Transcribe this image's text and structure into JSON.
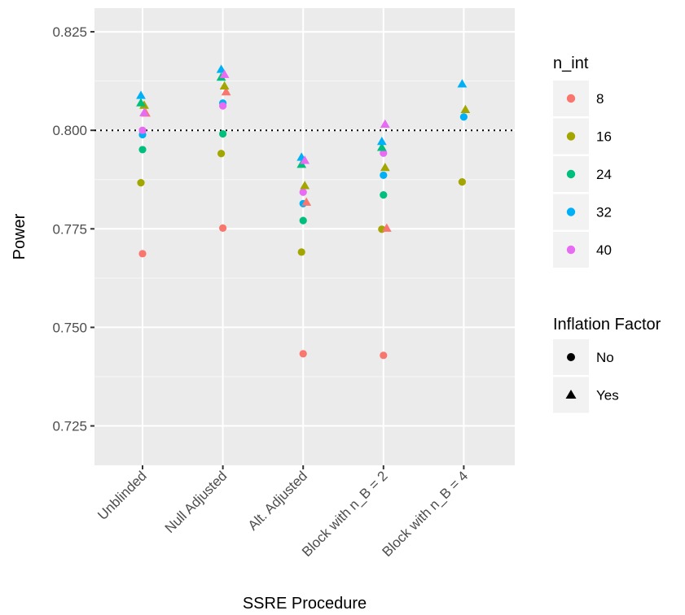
{
  "chart_data": {
    "type": "scatter",
    "xlabel": "SSRE Procedure",
    "ylabel": "Power",
    "categories": [
      "Unblinded",
      "Null Adjusted",
      "Alt. Adjusted",
      "Block with n_B = 2",
      "Block with n_B = 4"
    ],
    "ylim": [
      0.715,
      0.831
    ],
    "y_ticks": [
      0.725,
      0.75,
      0.775,
      0.8,
      0.825
    ],
    "y_tick_labels": [
      "0.725",
      "0.750",
      "0.775",
      "0.800",
      "0.825"
    ],
    "reference_line": {
      "y": 0.8,
      "style": "dotted"
    },
    "grid": true,
    "legend_position": "right",
    "color_legend": {
      "title": "n_int",
      "entries": [
        {
          "label": "8",
          "color": "#F8766D"
        },
        {
          "label": "16",
          "color": "#A3A500"
        },
        {
          "label": "24",
          "color": "#00BF7D"
        },
        {
          "label": "32",
          "color": "#00B0F6"
        },
        {
          "label": "40",
          "color": "#E76BF3"
        }
      ]
    },
    "shape_legend": {
      "title": "Inflation Factor",
      "entries": [
        {
          "label": "No",
          "shape": "circle"
        },
        {
          "label": "Yes",
          "shape": "triangle"
        }
      ]
    },
    "points": [
      {
        "category": "Unblinded",
        "n_int": "8",
        "inflation": "No",
        "y": 0.7687
      },
      {
        "category": "Unblinded",
        "n_int": "8",
        "inflation": "Yes",
        "y": 0.8043
      },
      {
        "category": "Unblinded",
        "n_int": "16",
        "inflation": "No",
        "y": 0.7867
      },
      {
        "category": "Unblinded",
        "n_int": "16",
        "inflation": "Yes",
        "y": 0.8063
      },
      {
        "category": "Unblinded",
        "n_int": "24",
        "inflation": "No",
        "y": 0.7951
      },
      {
        "category": "Unblinded",
        "n_int": "24",
        "inflation": "Yes",
        "y": 0.8069
      },
      {
        "category": "Unblinded",
        "n_int": "32",
        "inflation": "No",
        "y": 0.7989
      },
      {
        "category": "Unblinded",
        "n_int": "32",
        "inflation": "Yes",
        "y": 0.8088
      },
      {
        "category": "Unblinded",
        "n_int": "40",
        "inflation": "No",
        "y": 0.8
      },
      {
        "category": "Unblinded",
        "n_int": "40",
        "inflation": "Yes",
        "y": 0.8044
      },
      {
        "category": "Null Adjusted",
        "n_int": "8",
        "inflation": "No",
        "y": 0.7752
      },
      {
        "category": "Null Adjusted",
        "n_int": "8",
        "inflation": "Yes",
        "y": 0.8097
      },
      {
        "category": "Null Adjusted",
        "n_int": "16",
        "inflation": "No",
        "y": 0.7941
      },
      {
        "category": "Null Adjusted",
        "n_int": "16",
        "inflation": "Yes",
        "y": 0.8112
      },
      {
        "category": "Null Adjusted",
        "n_int": "24",
        "inflation": "No",
        "y": 0.7991
      },
      {
        "category": "Null Adjusted",
        "n_int": "24",
        "inflation": "Yes",
        "y": 0.8134
      },
      {
        "category": "Null Adjusted",
        "n_int": "32",
        "inflation": "No",
        "y": 0.8069
      },
      {
        "category": "Null Adjusted",
        "n_int": "32",
        "inflation": "Yes",
        "y": 0.8154
      },
      {
        "category": "Null Adjusted",
        "n_int": "40",
        "inflation": "No",
        "y": 0.8062
      },
      {
        "category": "Null Adjusted",
        "n_int": "40",
        "inflation": "Yes",
        "y": 0.8141
      },
      {
        "category": "Alt. Adjusted",
        "n_int": "8",
        "inflation": "No",
        "y": 0.7433
      },
      {
        "category": "Alt. Adjusted",
        "n_int": "8",
        "inflation": "Yes",
        "y": 0.7817
      },
      {
        "category": "Alt. Adjusted",
        "n_int": "16",
        "inflation": "No",
        "y": 0.7691
      },
      {
        "category": "Alt. Adjusted",
        "n_int": "16",
        "inflation": "Yes",
        "y": 0.7859
      },
      {
        "category": "Alt. Adjusted",
        "n_int": "24",
        "inflation": "No",
        "y": 0.7771
      },
      {
        "category": "Alt. Adjusted",
        "n_int": "24",
        "inflation": "Yes",
        "y": 0.7913
      },
      {
        "category": "Alt. Adjusted",
        "n_int": "32",
        "inflation": "No",
        "y": 0.7814
      },
      {
        "category": "Alt. Adjusted",
        "n_int": "32",
        "inflation": "Yes",
        "y": 0.7931
      },
      {
        "category": "Alt. Adjusted",
        "n_int": "40",
        "inflation": "No",
        "y": 0.7843
      },
      {
        "category": "Alt. Adjusted",
        "n_int": "40",
        "inflation": "Yes",
        "y": 0.7923
      },
      {
        "category": "Block with n_B = 2",
        "n_int": "8",
        "inflation": "No",
        "y": 0.7429
      },
      {
        "category": "Block with n_B = 2",
        "n_int": "8",
        "inflation": "Yes",
        "y": 0.7751
      },
      {
        "category": "Block with n_B = 2",
        "n_int": "16",
        "inflation": "No",
        "y": 0.7749
      },
      {
        "category": "Block with n_B = 2",
        "n_int": "16",
        "inflation": "Yes",
        "y": 0.7905
      },
      {
        "category": "Block with n_B = 2",
        "n_int": "24",
        "inflation": "No",
        "y": 0.7836
      },
      {
        "category": "Block with n_B = 2",
        "n_int": "24",
        "inflation": "Yes",
        "y": 0.7956
      },
      {
        "category": "Block with n_B = 2",
        "n_int": "32",
        "inflation": "No",
        "y": 0.7886
      },
      {
        "category": "Block with n_B = 2",
        "n_int": "32",
        "inflation": "Yes",
        "y": 0.7971
      },
      {
        "category": "Block with n_B = 2",
        "n_int": "40",
        "inflation": "No",
        "y": 0.7942
      },
      {
        "category": "Block with n_B = 2",
        "n_int": "40",
        "inflation": "Yes",
        "y": 0.8015
      },
      {
        "category": "Block with n_B = 4",
        "n_int": "16",
        "inflation": "No",
        "y": 0.7869
      },
      {
        "category": "Block with n_B = 4",
        "n_int": "16",
        "inflation": "Yes",
        "y": 0.8052
      },
      {
        "category": "Block with n_B = 4",
        "n_int": "32",
        "inflation": "No",
        "y": 0.8034
      },
      {
        "category": "Block with n_B = 4",
        "n_int": "32",
        "inflation": "Yes",
        "y": 0.8117
      }
    ]
  }
}
